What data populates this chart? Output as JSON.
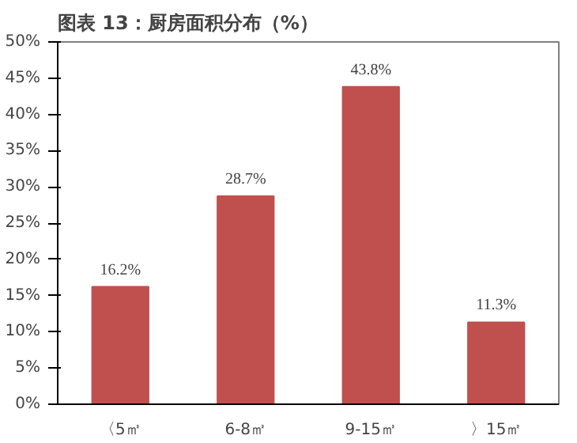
{
  "chart_data": {
    "type": "bar",
    "title": "图表 13：厨房面积分布（%）",
    "categories": [
      "〈5㎡",
      "6-8㎡",
      "9-15㎡",
      "〉15㎡"
    ],
    "values": [
      16.2,
      28.7,
      43.8,
      11.3
    ],
    "value_labels": [
      "16.2%",
      "28.7%",
      "43.8%",
      "11.3%"
    ],
    "color": "#c0504d",
    "ylim": [
      0,
      50
    ],
    "yticks": [
      {
        "value": 0,
        "label": "0%"
      },
      {
        "value": 5,
        "label": "5%"
      },
      {
        "value": 10,
        "label": "10%"
      },
      {
        "value": 15,
        "label": "15%"
      },
      {
        "value": 20,
        "label": "20%"
      },
      {
        "value": 25,
        "label": "25%"
      },
      {
        "value": 30,
        "label": "30%"
      },
      {
        "value": 35,
        "label": "35%"
      },
      {
        "value": 40,
        "label": "40%"
      },
      {
        "value": 45,
        "label": "45%"
      },
      {
        "value": 50,
        "label": "50%"
      }
    ],
    "grid": false
  }
}
